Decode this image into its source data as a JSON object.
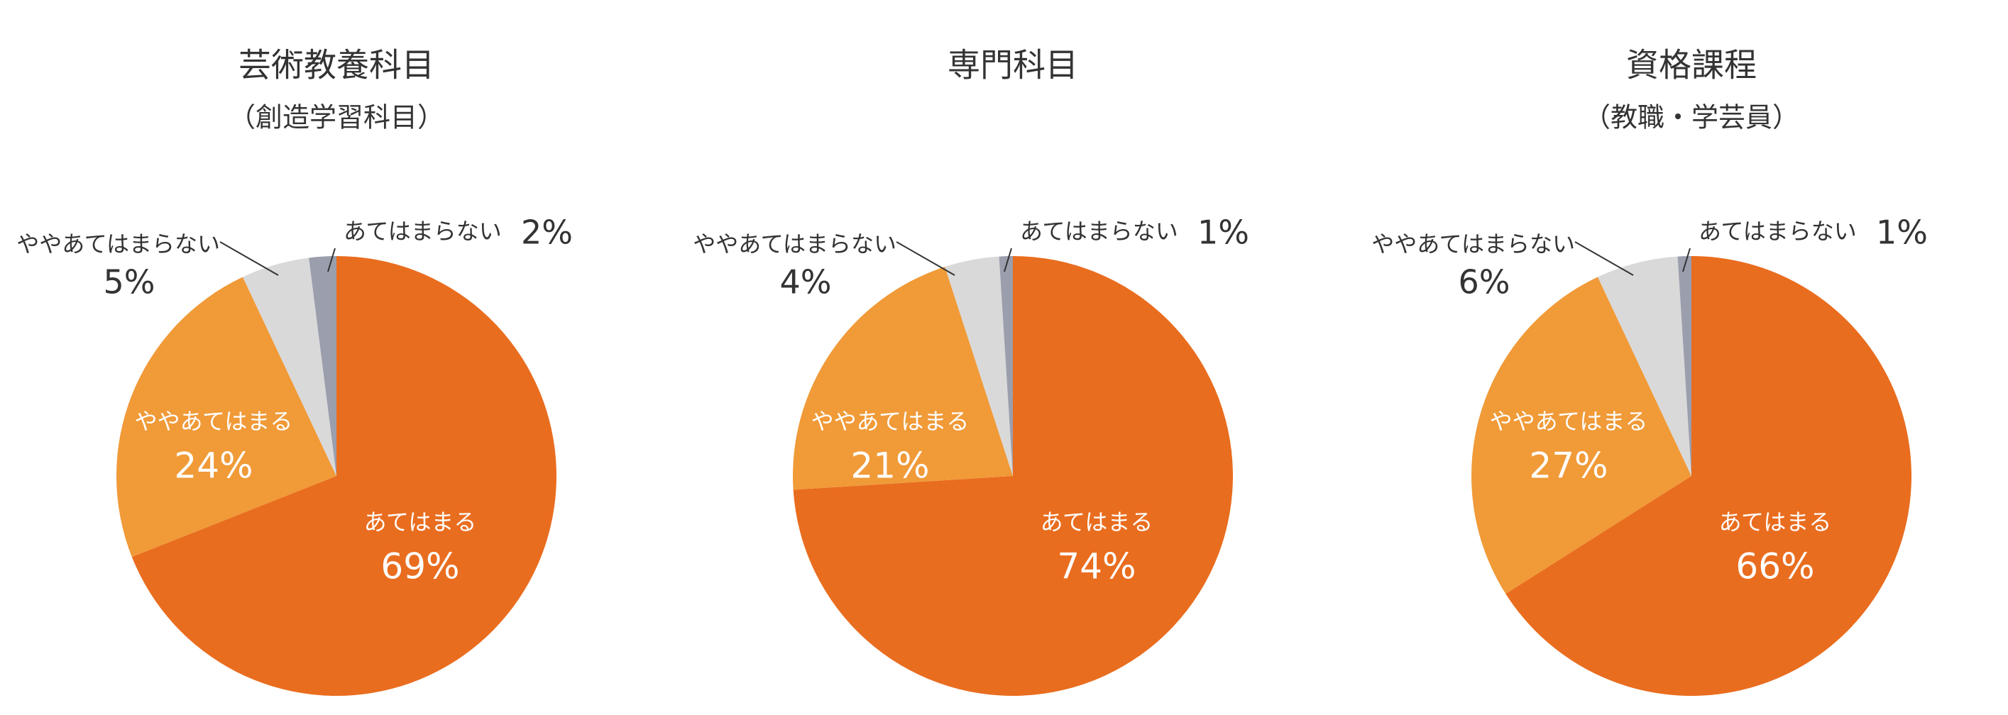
{
  "chart_data": [
    {
      "type": "pie",
      "title": "芸術教養科目",
      "subtitle": "（創造学習科目）",
      "categories": [
        "あてはまる",
        "ややあてはまる",
        "ややあてはまらない",
        "あてはまらない"
      ],
      "values": [
        69,
        24,
        5,
        2
      ],
      "value_labels": [
        "69%",
        "24%",
        "5%",
        "2%"
      ],
      "colors": [
        "#e96d1f",
        "#f09a38",
        "#d9d9d9",
        "#9b9ead"
      ]
    },
    {
      "type": "pie",
      "title": "専門科目",
      "categories": [
        "あてはまる",
        "ややあてはまる",
        "ややあてはまらない",
        "あてはまらない"
      ],
      "values": [
        74,
        21,
        4,
        1
      ],
      "value_labels": [
        "74%",
        "21%",
        "4%",
        "1%"
      ],
      "colors": [
        "#e96d1f",
        "#f09a38",
        "#d9d9d9",
        "#9b9ead"
      ]
    },
    {
      "type": "pie",
      "title": "資格課程",
      "subtitle": "（教職・学芸員）",
      "categories": [
        "あてはまる",
        "ややあてはまる",
        "ややあてはまらない",
        "あてはまらない"
      ],
      "values": [
        66,
        27,
        6,
        1
      ],
      "value_labels": [
        "66%",
        "27%",
        "6%",
        "1%"
      ],
      "colors": [
        "#e96d1f",
        "#f09a38",
        "#d9d9d9",
        "#9b9ead"
      ]
    }
  ]
}
